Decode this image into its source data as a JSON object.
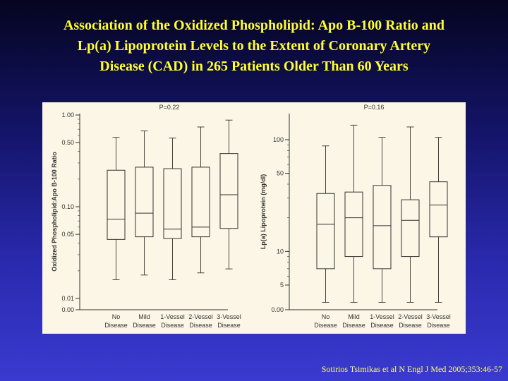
{
  "slide": {
    "title_lines": [
      "Association of the Oxidized Phospholipid: Apo B-100 Ratio and",
      "Lp(a) Lipoprotein Levels to the Extent of Coronary Artery",
      "Disease (CAD) in 265 Patients Older Than 60 Years"
    ],
    "citation": "Sotirios Tsimikas et al N Engl J Med 2005;353:46-57"
  },
  "colors": {
    "title": "#ffff33",
    "panel_bg": "#fbf6e5",
    "ink": "#333333"
  },
  "chart_data": [
    {
      "type": "box",
      "annotation": "P=0.22",
      "ylabel": "Oxidized Phospholipid:Apo B-100 Ratio",
      "yscale": "log",
      "ytick_labels": [
        "1.00",
        "0.50",
        "0.10",
        "0.05",
        "0.01",
        "0.00"
      ],
      "yticks": [
        1.0,
        0.5,
        0.1,
        0.05,
        0.01,
        0.0
      ],
      "categories": [
        [
          "No",
          "Disease"
        ],
        [
          "Mild",
          "Disease"
        ],
        [
          "1-Vessel",
          "Disease"
        ],
        [
          "2-Vessel",
          "Disease"
        ],
        [
          "3-Vessel",
          "Disease"
        ]
      ],
      "boxes": [
        {
          "whisker_low": 0.016,
          "q1": 0.044,
          "median": 0.073,
          "q3": 0.25,
          "whisker_high": 0.57
        },
        {
          "whisker_low": 0.018,
          "q1": 0.047,
          "median": 0.085,
          "q3": 0.27,
          "whisker_high": 0.67
        },
        {
          "whisker_low": 0.016,
          "q1": 0.045,
          "median": 0.057,
          "q3": 0.26,
          "whisker_high": 0.56
        },
        {
          "whisker_low": 0.019,
          "q1": 0.047,
          "median": 0.06,
          "q3": 0.27,
          "whisker_high": 0.74
        },
        {
          "whisker_low": 0.021,
          "q1": 0.058,
          "median": 0.135,
          "q3": 0.38,
          "whisker_high": 0.88
        }
      ]
    },
    {
      "type": "box",
      "annotation": "P=0.16",
      "ylabel": "Lp(a) Lipoprotein (mg/dl)",
      "yscale": "log",
      "ytick_labels": [
        "100",
        "50",
        "10",
        "5",
        "0.00"
      ],
      "yticks": [
        100,
        50,
        10,
        5,
        0
      ],
      "categories": [
        [
          "No",
          "Disease"
        ],
        [
          "Mild",
          "Disease"
        ],
        [
          "1-Vessel",
          "Disease"
        ],
        [
          "2-Vessel",
          "Disease"
        ],
        [
          "3-Vessel",
          "Disease"
        ]
      ],
      "boxes": [
        {
          "whisker_low": 3.5,
          "q1": 7,
          "median": 17.5,
          "q3": 33,
          "whisker_high": 88
        },
        {
          "whisker_low": 3.5,
          "q1": 9,
          "median": 20,
          "q3": 34,
          "whisker_high": 135
        },
        {
          "whisker_low": 3.5,
          "q1": 7,
          "median": 17,
          "q3": 39,
          "whisker_high": 105
        },
        {
          "whisker_low": 3.5,
          "q1": 9,
          "median": 19,
          "q3": 29,
          "whisker_high": 130
        },
        {
          "whisker_low": 3.5,
          "q1": 13.5,
          "median": 26,
          "q3": 42,
          "whisker_high": 105
        }
      ]
    }
  ]
}
